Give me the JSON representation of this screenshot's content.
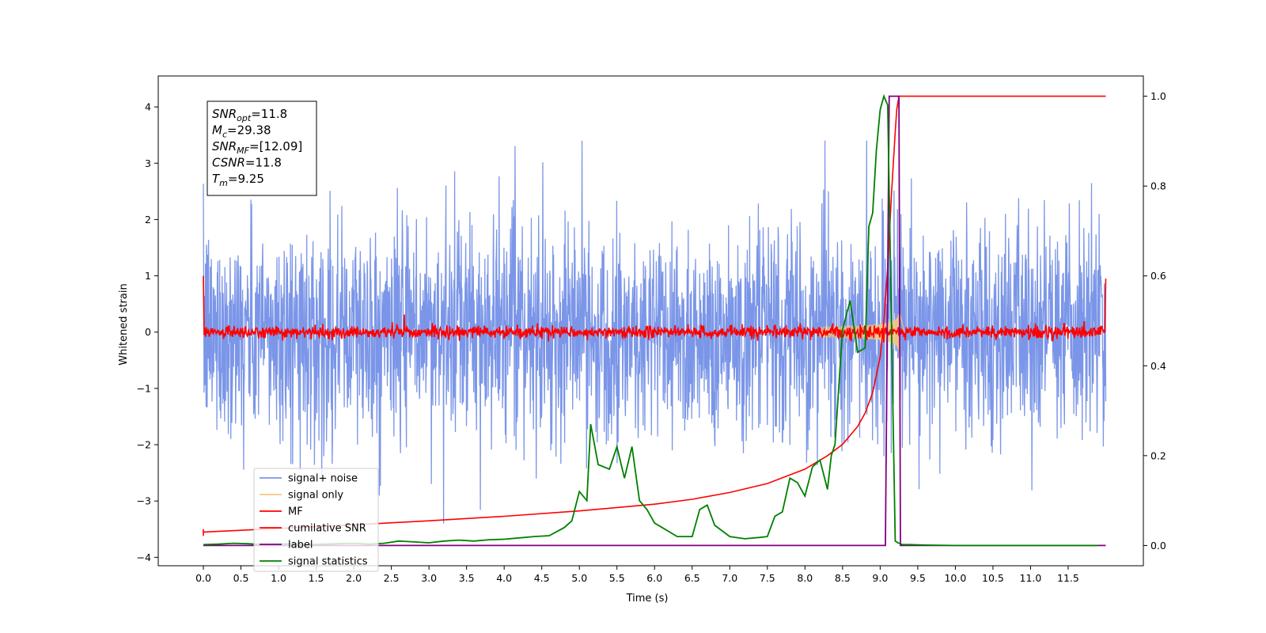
{
  "chart_data": {
    "type": "line",
    "xlabel": "Time (s)",
    "ylabel": "Whitened strain",
    "xlim": [
      -0.6,
      12.5
    ],
    "ylim_left": [
      -4.15,
      4.55
    ],
    "ylim_right": [
      -0.045,
      1.045
    ],
    "x_ticks": [
      0.0,
      0.5,
      1.0,
      1.5,
      2.0,
      2.5,
      3.0,
      3.5,
      4.0,
      4.5,
      5.0,
      5.5,
      6.0,
      6.5,
      7.0,
      7.5,
      8.0,
      8.5,
      9.0,
      9.5,
      10.0,
      10.5,
      11.0,
      11.5
    ],
    "x_tick_labels": [
      "0.0",
      "0.5",
      "1.0",
      "1.5",
      "2.0",
      "2.5",
      "3.0",
      "3.5",
      "4.0",
      "4.5",
      "5.0",
      "5.5",
      "6.0",
      "6.5",
      "7.0",
      "7.5",
      "8.0",
      "8.5",
      "9.0",
      "9.5",
      "10.0",
      "10.5",
      "11.0",
      "11.5"
    ],
    "y_left_ticks": [
      4,
      3,
      2,
      1,
      0,
      -1,
      -2,
      -3,
      -4
    ],
    "y_left_tick_labels": [
      "4",
      "3",
      "2",
      "1",
      "0",
      "−1",
      "−2",
      "−3",
      "−4"
    ],
    "y_right_ticks": [
      1.0,
      0.8,
      0.6,
      0.4,
      0.2,
      0.0
    ],
    "y_right_tick_labels": [
      "1.0",
      "0.8",
      "0.6",
      "0.4",
      "0.2",
      "0.0"
    ],
    "grid": false,
    "legend_placement": "lower-left",
    "annotation": {
      "lines": [
        {
          "main": "SNR",
          "sub": "opt",
          "rest": "=11.8"
        },
        {
          "main": "M",
          "sub": "c",
          "rest": "=29.38"
        },
        {
          "main": "SNR",
          "sub": "MF",
          "rest": "=[12.09]"
        },
        {
          "main": "CSNR",
          "sub": "",
          "rest": "=11.8"
        },
        {
          "main": "T",
          "sub": "m",
          "rest": "=9.25"
        }
      ]
    },
    "series": [
      {
        "name": "signal+ noise",
        "color": "#7b96e8",
        "axis": "left",
        "style": "dense noise, envelope about ±2.5, peaks to about ±3.5, x 0 to 12"
      },
      {
        "name": "signal only",
        "color": "#f5c77e",
        "axis": "left",
        "style": "chirp growing near x 8.5 to 9.3, amplitude up to about 0.5"
      },
      {
        "name": "MF",
        "color": "#ff0000",
        "axis": "left",
        "style": "matched filter output, noise about 0 with amplitude about 0.1, end spikes to 1.0 and -3.62"
      },
      {
        "name": "cumilative SNR",
        "color": "#ff0000",
        "axis": "right",
        "x": [
          0.0,
          1.0,
          2.0,
          3.0,
          4.0,
          5.0,
          6.0,
          6.5,
          7.0,
          7.5,
          8.0,
          8.3,
          8.5,
          8.7,
          8.8,
          8.9,
          9.0,
          9.05,
          9.1,
          9.15,
          9.2,
          9.22,
          9.25,
          12.0
        ],
        "y": [
          0.03,
          0.038,
          0.046,
          0.055,
          0.065,
          0.077,
          0.092,
          0.103,
          0.118,
          0.138,
          0.17,
          0.2,
          0.225,
          0.265,
          0.295,
          0.34,
          0.42,
          0.5,
          0.62,
          0.78,
          0.92,
          0.97,
          1.0,
          1.0
        ]
      },
      {
        "name": "label",
        "color": "#800080",
        "axis": "right",
        "x": [
          0.0,
          9.07,
          9.12,
          9.25,
          9.27,
          12.0
        ],
        "y": [
          0.0,
          0.0,
          1.0,
          1.0,
          0.0,
          0.0
        ]
      },
      {
        "name": "signal statistics",
        "color": "#008000",
        "axis": "right",
        "x": [
          0.0,
          0.2,
          0.4,
          0.6,
          0.8,
          1.0,
          1.2,
          1.4,
          1.6,
          1.8,
          2.0,
          2.2,
          2.4,
          2.6,
          2.8,
          3.0,
          3.2,
          3.4,
          3.6,
          3.8,
          4.0,
          4.2,
          4.4,
          4.6,
          4.8,
          4.9,
          5.0,
          5.1,
          5.15,
          5.25,
          5.4,
          5.5,
          5.6,
          5.7,
          5.8,
          5.9,
          6.0,
          6.1,
          6.2,
          6.3,
          6.5,
          6.6,
          6.7,
          6.8,
          7.0,
          7.2,
          7.4,
          7.5,
          7.6,
          7.7,
          7.8,
          7.9,
          8.0,
          8.1,
          8.2,
          8.3,
          8.35,
          8.4,
          8.5,
          8.6,
          8.7,
          8.8,
          8.85,
          8.9,
          8.95,
          9.0,
          9.05,
          9.1,
          9.15,
          9.2,
          9.25,
          9.3,
          9.4,
          9.6,
          10.0,
          11.0,
          11.9
        ],
        "y": [
          0.002,
          0.003,
          0.005,
          0.004,
          0.002,
          0.003,
          0.004,
          0.002,
          0.003,
          0.004,
          0.005,
          0.003,
          0.005,
          0.01,
          0.008,
          0.006,
          0.01,
          0.012,
          0.01,
          0.013,
          0.014,
          0.017,
          0.02,
          0.022,
          0.04,
          0.055,
          0.12,
          0.1,
          0.27,
          0.18,
          0.17,
          0.22,
          0.15,
          0.22,
          0.1,
          0.08,
          0.05,
          0.04,
          0.03,
          0.02,
          0.02,
          0.08,
          0.09,
          0.045,
          0.02,
          0.015,
          0.018,
          0.02,
          0.065,
          0.075,
          0.15,
          0.14,
          0.11,
          0.175,
          0.19,
          0.125,
          0.2,
          0.225,
          0.48,
          0.545,
          0.43,
          0.44,
          0.71,
          0.74,
          0.88,
          0.97,
          1.0,
          0.98,
          0.5,
          0.01,
          0.005,
          0.002,
          0.002,
          0.001,
          0.0,
          0.0,
          0.0
        ]
      }
    ]
  }
}
